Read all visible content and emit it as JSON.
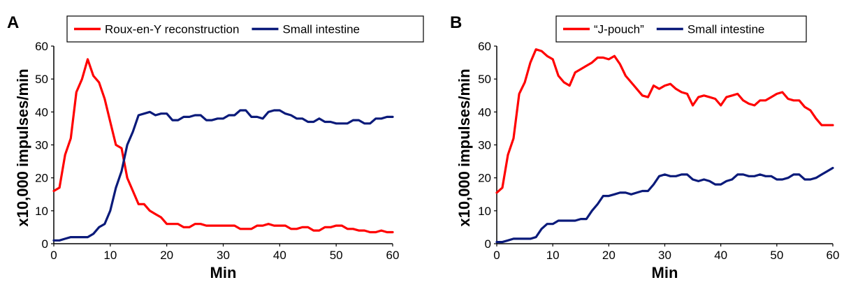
{
  "chart_data": [
    {
      "type": "line",
      "panel": "A",
      "xlabel": "Min",
      "ylabel": "x10,000 impulses/min",
      "xlim": [
        0,
        60
      ],
      "ylim": [
        0,
        60
      ],
      "xticks": [
        "0",
        "10",
        "20",
        "30",
        "40",
        "50",
        "60"
      ],
      "yticks": [
        "0",
        "10",
        "20",
        "30",
        "40",
        "50",
        "60"
      ],
      "grid": false,
      "legend_position": "top",
      "series": [
        {
          "name": "Roux-en-Y reconstruction",
          "color": "#ff0000",
          "points": [
            [
              0,
              16
            ],
            [
              1,
              17
            ],
            [
              2,
              27
            ],
            [
              3,
              32
            ],
            [
              4,
              46
            ],
            [
              5,
              50
            ],
            [
              6,
              56
            ],
            [
              7,
              51
            ],
            [
              8,
              49
            ],
            [
              9,
              44
            ],
            [
              10,
              37
            ],
            [
              11,
              30
            ],
            [
              12,
              29
            ],
            [
              13,
              20
            ],
            [
              14,
              16
            ],
            [
              15,
              12
            ],
            [
              16,
              12
            ],
            [
              17,
              10
            ],
            [
              18,
              9
            ],
            [
              19,
              8
            ],
            [
              20,
              6
            ],
            [
              21,
              6
            ],
            [
              22,
              6
            ],
            [
              23,
              5
            ],
            [
              24,
              5
            ],
            [
              25,
              6
            ],
            [
              26,
              6
            ],
            [
              27,
              5.5
            ],
            [
              28,
              5.5
            ],
            [
              29,
              5.5
            ],
            [
              30,
              5.5
            ],
            [
              31,
              5.5
            ],
            [
              32,
              5.5
            ],
            [
              33,
              4.5
            ],
            [
              34,
              4.5
            ],
            [
              35,
              4.5
            ],
            [
              36,
              5.5
            ],
            [
              37,
              5.5
            ],
            [
              38,
              6
            ],
            [
              39,
              5.5
            ],
            [
              40,
              5.5
            ],
            [
              41,
              5.5
            ],
            [
              42,
              4.5
            ],
            [
              43,
              4.5
            ],
            [
              44,
              5
            ],
            [
              45,
              5
            ],
            [
              46,
              4
            ],
            [
              47,
              4
            ],
            [
              48,
              5
            ],
            [
              49,
              5
            ],
            [
              50,
              5.5
            ],
            [
              51,
              5.5
            ],
            [
              52,
              4.5
            ],
            [
              53,
              4.5
            ],
            [
              54,
              4
            ],
            [
              55,
              4
            ],
            [
              56,
              3.5
            ],
            [
              57,
              3.5
            ],
            [
              58,
              4
            ],
            [
              59,
              3.5
            ],
            [
              60,
              3.5
            ]
          ]
        },
        {
          "name": "Small intestine",
          "color": "#0a1a7a",
          "points": [
            [
              0,
              1
            ],
            [
              1,
              1
            ],
            [
              2,
              1.5
            ],
            [
              3,
              2
            ],
            [
              4,
              2
            ],
            [
              5,
              2
            ],
            [
              6,
              2
            ],
            [
              7,
              3
            ],
            [
              8,
              5
            ],
            [
              9,
              6
            ],
            [
              10,
              10
            ],
            [
              11,
              17
            ],
            [
              12,
              22
            ],
            [
              13,
              30
            ],
            [
              14,
              34
            ],
            [
              15,
              39
            ],
            [
              16,
              39.5
            ],
            [
              17,
              40
            ],
            [
              18,
              39
            ],
            [
              19,
              39.5
            ],
            [
              20,
              39.5
            ],
            [
              21,
              37.5
            ],
            [
              22,
              37.5
            ],
            [
              23,
              38.5
            ],
            [
              24,
              38.5
            ],
            [
              25,
              39
            ],
            [
              26,
              39
            ],
            [
              27,
              37.5
            ],
            [
              28,
              37.5
            ],
            [
              29,
              38
            ],
            [
              30,
              38
            ],
            [
              31,
              39
            ],
            [
              32,
              39
            ],
            [
              33,
              40.5
            ],
            [
              34,
              40.5
            ],
            [
              35,
              38.5
            ],
            [
              36,
              38.5
            ],
            [
              37,
              38
            ],
            [
              38,
              40
            ],
            [
              39,
              40.5
            ],
            [
              40,
              40.5
            ],
            [
              41,
              39.5
            ],
            [
              42,
              39
            ],
            [
              43,
              38
            ],
            [
              44,
              38
            ],
            [
              45,
              37
            ],
            [
              46,
              37
            ],
            [
              47,
              38
            ],
            [
              48,
              37
            ],
            [
              49,
              37
            ],
            [
              50,
              36.5
            ],
            [
              51,
              36.5
            ],
            [
              52,
              36.5
            ],
            [
              53,
              37.5
            ],
            [
              54,
              37.5
            ],
            [
              55,
              36.5
            ],
            [
              56,
              36.5
            ],
            [
              57,
              38
            ],
            [
              58,
              38
            ],
            [
              59,
              38.5
            ],
            [
              60,
              38.5
            ]
          ]
        }
      ]
    },
    {
      "type": "line",
      "panel": "B",
      "xlabel": "Min",
      "ylabel": "x10,000 impulses/min",
      "xlim": [
        0,
        60
      ],
      "ylim": [
        0,
        60
      ],
      "xticks": [
        "0",
        "10",
        "20",
        "30",
        "40",
        "50",
        "60"
      ],
      "yticks": [
        "0",
        "10",
        "20",
        "30",
        "40",
        "50",
        "60"
      ],
      "grid": false,
      "legend_position": "top",
      "series": [
        {
          "name": "“J-pouch”",
          "color": "#ff0000",
          "points": [
            [
              0,
              15.5
            ],
            [
              1,
              17
            ],
            [
              2,
              27
            ],
            [
              3,
              32
            ],
            [
              4,
              45.5
            ],
            [
              5,
              49
            ],
            [
              6,
              55
            ],
            [
              7,
              59
            ],
            [
              8,
              58.5
            ],
            [
              9,
              57
            ],
            [
              10,
              56
            ],
            [
              11,
              51
            ],
            [
              12,
              49
            ],
            [
              13,
              48
            ],
            [
              14,
              52
            ],
            [
              15,
              53
            ],
            [
              16,
              54
            ],
            [
              17,
              55
            ],
            [
              18,
              56.5
            ],
            [
              19,
              56.5
            ],
            [
              20,
              56
            ],
            [
              21,
              57
            ],
            [
              22,
              54.5
            ],
            [
              23,
              51
            ],
            [
              24,
              49
            ],
            [
              25,
              47
            ],
            [
              26,
              45
            ],
            [
              27,
              44.5
            ],
            [
              28,
              48
            ],
            [
              29,
              47
            ],
            [
              30,
              48
            ],
            [
              31,
              48.5
            ],
            [
              32,
              47
            ],
            [
              33,
              46
            ],
            [
              34,
              45.5
            ],
            [
              35,
              42
            ],
            [
              36,
              44.5
            ],
            [
              37,
              45
            ],
            [
              38,
              44.5
            ],
            [
              39,
              44
            ],
            [
              40,
              42
            ],
            [
              41,
              44.5
            ],
            [
              42,
              45
            ],
            [
              43,
              45.5
            ],
            [
              44,
              43.5
            ],
            [
              45,
              42.5
            ],
            [
              46,
              42
            ],
            [
              47,
              43.5
            ],
            [
              48,
              43.5
            ],
            [
              49,
              44.5
            ],
            [
              50,
              45.5
            ],
            [
              51,
              46
            ],
            [
              52,
              44
            ],
            [
              53,
              43.5
            ],
            [
              54,
              43.5
            ],
            [
              55,
              41.5
            ],
            [
              56,
              40.5
            ],
            [
              57,
              38
            ],
            [
              58,
              36
            ],
            [
              59,
              36
            ],
            [
              60,
              36
            ]
          ]
        },
        {
          "name": "Small intestine",
          "color": "#0a1a7a",
          "points": [
            [
              0,
              0.5
            ],
            [
              1,
              0.5
            ],
            [
              2,
              1
            ],
            [
              3,
              1.5
            ],
            [
              4,
              1.5
            ],
            [
              5,
              1.5
            ],
            [
              6,
              1.5
            ],
            [
              7,
              2
            ],
            [
              8,
              4.5
            ],
            [
              9,
              6
            ],
            [
              10,
              6
            ],
            [
              11,
              7
            ],
            [
              12,
              7
            ],
            [
              13,
              7
            ],
            [
              14,
              7
            ],
            [
              15,
              7.5
            ],
            [
              16,
              7.5
            ],
            [
              17,
              10
            ],
            [
              18,
              12
            ],
            [
              19,
              14.5
            ],
            [
              20,
              14.5
            ],
            [
              21,
              15
            ],
            [
              22,
              15.5
            ],
            [
              23,
              15.5
            ],
            [
              24,
              15
            ],
            [
              25,
              15.5
            ],
            [
              26,
              16
            ],
            [
              27,
              16
            ],
            [
              28,
              18
            ],
            [
              29,
              20.5
            ],
            [
              30,
              21
            ],
            [
              31,
              20.5
            ],
            [
              32,
              20.5
            ],
            [
              33,
              21
            ],
            [
              34,
              21
            ],
            [
              35,
              19.5
            ],
            [
              36,
              19
            ],
            [
              37,
              19.5
            ],
            [
              38,
              19
            ],
            [
              39,
              18
            ],
            [
              40,
              18
            ],
            [
              41,
              19
            ],
            [
              42,
              19.5
            ],
            [
              43,
              21
            ],
            [
              44,
              21
            ],
            [
              45,
              20.5
            ],
            [
              46,
              20.5
            ],
            [
              47,
              21
            ],
            [
              48,
              20.5
            ],
            [
              49,
              20.5
            ],
            [
              50,
              19.5
            ],
            [
              51,
              19.5
            ],
            [
              52,
              20
            ],
            [
              53,
              21
            ],
            [
              54,
              21
            ],
            [
              55,
              19.5
            ],
            [
              56,
              19.5
            ],
            [
              57,
              20
            ],
            [
              58,
              21
            ],
            [
              59,
              22
            ],
            [
              60,
              23
            ]
          ]
        }
      ]
    }
  ]
}
